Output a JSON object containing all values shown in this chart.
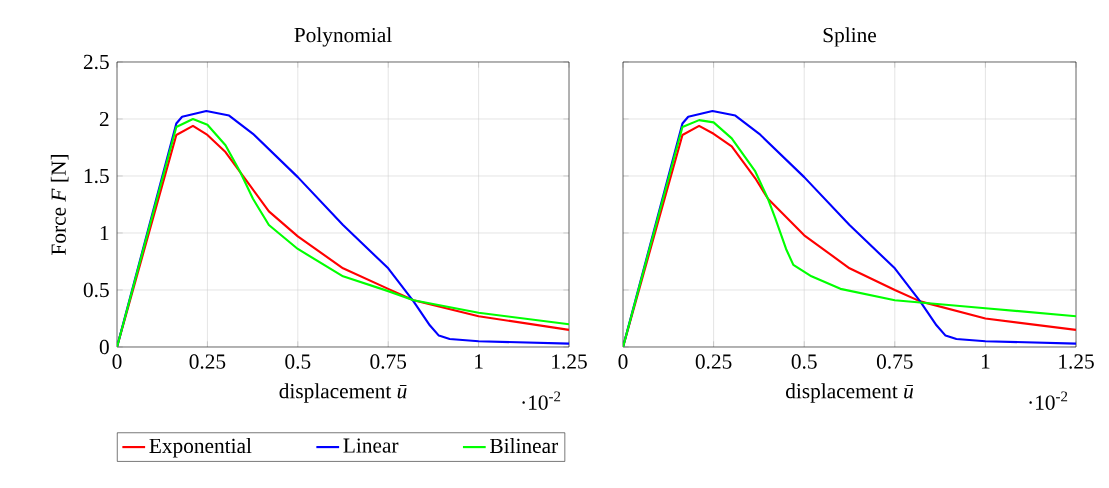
{
  "chart_data": [
    {
      "type": "line",
      "title": "Polynomial",
      "xlabel": "displacement *ū*",
      "ylabel": "Force *F* [N]",
      "annotations": [
        "·10$^{-2}$"
      ],
      "xlim": [
        0,
        1.25
      ],
      "ylim": [
        0,
        2.5
      ],
      "xticks": [
        0,
        0.25,
        0.5,
        0.75,
        1,
        1.25
      ],
      "yticks": [
        0,
        0.5,
        1,
        1.5,
        2,
        2.5
      ],
      "grid": true,
      "legend": "bottom",
      "marker": "none",
      "line_style": "solid",
      "series": [
        {
          "name": "Exponential",
          "color": "#ff0000",
          "x": [
            0,
            0.164,
            0.21,
            0.25,
            0.3,
            0.367,
            0.42,
            0.5,
            0.625,
            0.75,
            0.82,
            1,
            1.25
          ],
          "values": [
            0,
            1.86,
            1.94,
            1.86,
            1.71,
            1.42,
            1.19,
            0.97,
            0.69,
            0.51,
            0.41,
            0.27,
            0.15
          ]
        },
        {
          "name": "Linear",
          "color": "#0000ff",
          "x": [
            0,
            0.164,
            0.18,
            0.247,
            0.31,
            0.376,
            0.5,
            0.625,
            0.75,
            0.82,
            0.865,
            0.89,
            0.92,
            1,
            1.25
          ],
          "values": [
            0,
            1.96,
            2.02,
            2.07,
            2.03,
            1.87,
            1.49,
            1.07,
            0.69,
            0.4,
            0.19,
            0.1,
            0.07,
            0.05,
            0.03
          ]
        },
        {
          "name": "Bilinear",
          "color": "#00ff00",
          "x": [
            0,
            0.164,
            0.21,
            0.25,
            0.3,
            0.34,
            0.376,
            0.42,
            0.5,
            0.625,
            0.75,
            0.82,
            1,
            1.25
          ],
          "values": [
            0,
            1.93,
            2.0,
            1.95,
            1.77,
            1.54,
            1.3,
            1.07,
            0.86,
            0.62,
            0.49,
            0.41,
            0.3,
            0.2
          ]
        }
      ]
    },
    {
      "type": "line",
      "title": "Spline",
      "xlabel": "displacement *ū*",
      "annotations": [
        "·10$^{-2}$"
      ],
      "xlim": [
        0,
        1.25
      ],
      "ylim": [
        0,
        2.5
      ],
      "xticks": [
        0,
        0.25,
        0.5,
        0.75,
        1,
        1.25
      ],
      "yticks": [
        0,
        0.5,
        1,
        1.5,
        2,
        2.5
      ],
      "tick_labels": "x",
      "grid": true,
      "marker": "none",
      "line_style": "solid",
      "series": [
        {
          "color": "#ff0000",
          "x": [
            0,
            0.164,
            0.21,
            0.25,
            0.3,
            0.365,
            0.4,
            0.5,
            0.625,
            0.75,
            0.82,
            1,
            1.25
          ],
          "values": [
            0,
            1.86,
            1.94,
            1.87,
            1.76,
            1.48,
            1.3,
            0.98,
            0.69,
            0.5,
            0.4,
            0.25,
            0.15
          ]
        },
        {
          "color": "#0000ff",
          "x": [
            0,
            0.164,
            0.18,
            0.247,
            0.31,
            0.376,
            0.5,
            0.625,
            0.75,
            0.82,
            0.865,
            0.89,
            0.92,
            1,
            1.25
          ],
          "values": [
            0,
            1.96,
            2.02,
            2.07,
            2.03,
            1.87,
            1.49,
            1.07,
            0.69,
            0.4,
            0.19,
            0.1,
            0.07,
            0.05,
            0.03
          ]
        },
        {
          "color": "#00ff00",
          "x": [
            0,
            0.164,
            0.21,
            0.25,
            0.3,
            0.365,
            0.4,
            0.42,
            0.45,
            0.47,
            0.52,
            0.6,
            0.75,
            0.82,
            1,
            1.25
          ],
          "values": [
            0,
            1.93,
            1.99,
            1.97,
            1.83,
            1.54,
            1.3,
            1.13,
            0.86,
            0.72,
            0.62,
            0.51,
            0.41,
            0.39,
            0.34,
            0.27
          ]
        }
      ]
    }
  ]
}
